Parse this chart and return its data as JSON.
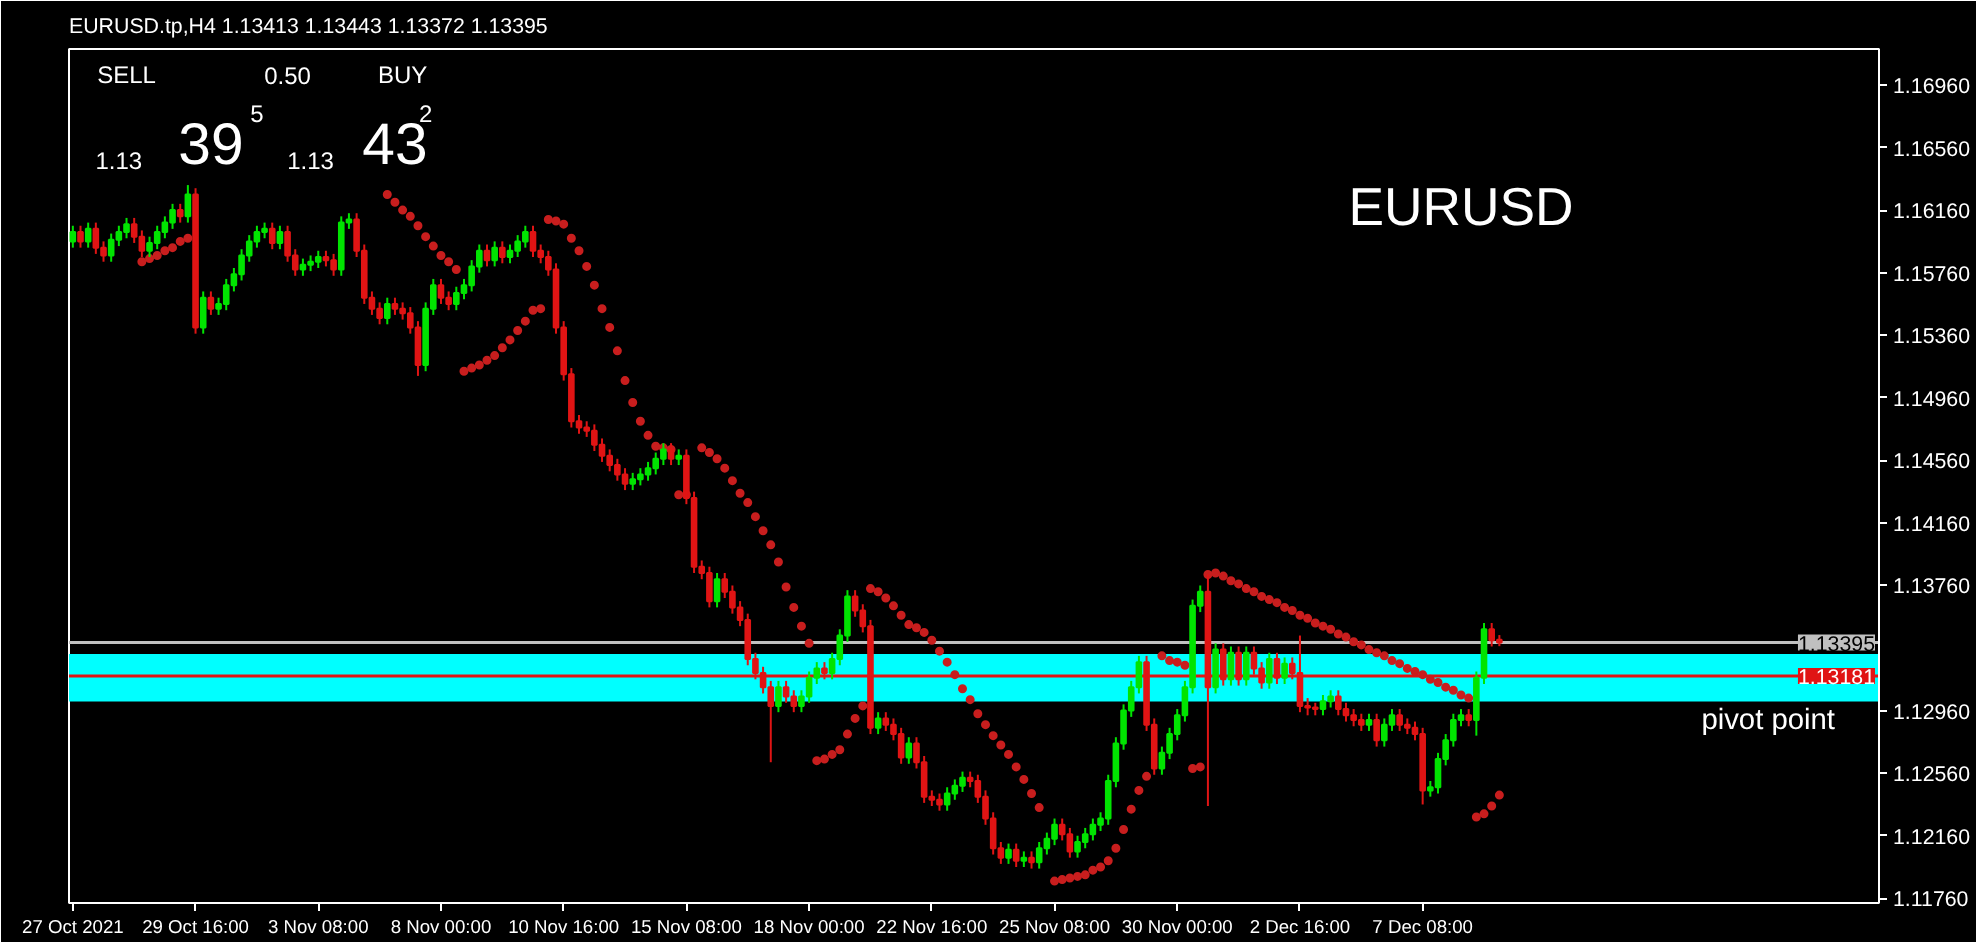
{
  "chart_data": {
    "type": "candlestick",
    "title": "EURUSD.tp,H4  1.13413 1.13443 1.13372 1.13395",
    "categories": [
      "27 Oct 2021",
      null,
      null,
      null,
      null,
      null,
      null,
      null,
      null,
      null,
      null,
      null,
      null,
      null,
      null,
      null,
      "29 Oct 16:00",
      null,
      null,
      null,
      null,
      null,
      null,
      null,
      null,
      null,
      null,
      null,
      null,
      null,
      null,
      null,
      "3 Nov 08:00",
      null,
      null,
      null,
      null,
      null,
      null,
      null,
      null,
      null,
      null,
      null,
      null,
      null,
      null,
      null,
      "8 Nov 00:00",
      null,
      null,
      null,
      null,
      null,
      null,
      null,
      null,
      null,
      null,
      null,
      null,
      null,
      null,
      null,
      "10 Nov 16:00",
      null,
      null,
      null,
      null,
      null,
      null,
      null,
      null,
      null,
      null,
      null,
      null,
      null,
      null,
      null,
      "15 Nov 08:00",
      null,
      null,
      null,
      null,
      null,
      null,
      null,
      null,
      null,
      null,
      null,
      null,
      null,
      null,
      null,
      "18 Nov 00:00",
      null,
      null,
      null,
      null,
      null,
      null,
      null,
      null,
      null,
      null,
      null,
      null,
      null,
      null,
      null,
      "22 Nov 16:00",
      null,
      null,
      null,
      null,
      null,
      null,
      null,
      null,
      null,
      null,
      null,
      null,
      null,
      null,
      null,
      "25 Nov 08:00",
      null,
      null,
      null,
      null,
      null,
      null,
      null,
      null,
      null,
      null,
      null,
      null,
      null,
      null,
      null,
      "30 Nov 00:00",
      null,
      null,
      null,
      null,
      null,
      null,
      null,
      null,
      null,
      null,
      null,
      null,
      null,
      null,
      null,
      "2 Dec 16:00",
      null,
      null,
      null,
      null,
      null,
      null,
      null,
      null,
      null,
      null,
      null,
      null,
      null,
      null,
      null,
      "7 Dec 08:00",
      null,
      null,
      null,
      null,
      null,
      null,
      null,
      null,
      null,
      null,
      null,
      null,
      null,
      null,
      null,
      null,
      null,
      null,
      null,
      null,
      null,
      null,
      null,
      null,
      null,
      null,
      null,
      null,
      null,
      null,
      null,
      null,
      null,
      null,
      null,
      null,
      null,
      null,
      null,
      null,
      null,
      null,
      null,
      null,
      null,
      null,
      null,
      null,
      null,
      null,
      null,
      null,
      null,
      null,
      null,
      null,
      null,
      null,
      null
    ],
    "ohlc": [
      [
        1.1596,
        1.1606,
        1.1592,
        1.1602
      ],
      [
        1.1602,
        1.1606,
        1.1592,
        1.1596
      ],
      [
        1.1596,
        1.1608,
        1.1592,
        1.1604
      ],
      [
        1.1604,
        1.1608,
        1.1588,
        1.1592
      ],
      [
        1.1592,
        1.1596,
        1.1583,
        1.1587
      ],
      [
        1.1587,
        1.1601,
        1.1583,
        1.1597
      ],
      [
        1.1597,
        1.1606,
        1.1593,
        1.1602
      ],
      [
        1.1602,
        1.1611,
        1.1598,
        1.1607
      ],
      [
        1.1607,
        1.1611,
        1.1595,
        1.1599
      ],
      [
        1.1599,
        1.1603,
        1.1586,
        1.159
      ],
      [
        1.159,
        1.1599,
        1.1586,
        1.1595
      ],
      [
        1.1595,
        1.1606,
        1.1591,
        1.1602
      ],
      [
        1.1602,
        1.1612,
        1.1598,
        1.1608
      ],
      [
        1.1608,
        1.162,
        1.1604,
        1.1616
      ],
      [
        1.1616,
        1.162,
        1.1608,
        1.1612
      ],
      [
        1.1612,
        1.1632,
        1.1608,
        1.1626
      ],
      [
        1.1626,
        1.163,
        1.1537,
        1.1541
      ],
      [
        1.1541,
        1.1564,
        1.1537,
        1.156
      ],
      [
        1.156,
        1.1564,
        1.1549,
        1.1553
      ],
      [
        1.1553,
        1.156,
        1.1549,
        1.1556
      ],
      [
        1.1556,
        1.1572,
        1.1552,
        1.1568
      ],
      [
        1.1568,
        1.1579,
        1.1564,
        1.1575
      ],
      [
        1.1575,
        1.1591,
        1.1571,
        1.1587
      ],
      [
        1.1587,
        1.16,
        1.1583,
        1.1596
      ],
      [
        1.1596,
        1.1606,
        1.1592,
        1.1602
      ],
      [
        1.1602,
        1.1608,
        1.1598,
        1.1604
      ],
      [
        1.1604,
        1.1608,
        1.1591,
        1.1595
      ],
      [
        1.1595,
        1.1606,
        1.1591,
        1.1602
      ],
      [
        1.1602,
        1.1606,
        1.1583,
        1.1587
      ],
      [
        1.1587,
        1.1591,
        1.1574,
        1.1578
      ],
      [
        1.1578,
        1.1585,
        1.1574,
        1.1581
      ],
      [
        1.1581,
        1.1587,
        1.1577,
        1.1583
      ],
      [
        1.1583,
        1.159,
        1.1579,
        1.1586
      ],
      [
        1.1586,
        1.159,
        1.158,
        1.1584
      ],
      [
        1.1584,
        1.1588,
        1.1574,
        1.1578
      ],
      [
        1.1578,
        1.1612,
        1.1574,
        1.1608
      ],
      [
        1.1608,
        1.1614,
        1.1604,
        1.161
      ],
      [
        1.161,
        1.1614,
        1.1586,
        1.159
      ],
      [
        1.159,
        1.1594,
        1.1556,
        1.156
      ],
      [
        1.156,
        1.1564,
        1.1549,
        1.1553
      ],
      [
        1.1553,
        1.1557,
        1.1543,
        1.1547
      ],
      [
        1.1547,
        1.156,
        1.1543,
        1.1556
      ],
      [
        1.1556,
        1.156,
        1.1549,
        1.1553
      ],
      [
        1.1553,
        1.1557,
        1.1546,
        1.155
      ],
      [
        1.155,
        1.1554,
        1.1537,
        1.1541
      ],
      [
        1.1541,
        1.1545,
        1.151,
        1.1517
      ],
      [
        1.1517,
        1.1557,
        1.1513,
        1.1553
      ],
      [
        1.1553,
        1.1572,
        1.1549,
        1.1568
      ],
      [
        1.1568,
        1.1572,
        1.1556,
        1.156
      ],
      [
        1.156,
        1.1564,
        1.1552,
        1.1556
      ],
      [
        1.1556,
        1.1567,
        1.1552,
        1.1563
      ],
      [
        1.1563,
        1.1572,
        1.1559,
        1.1568
      ],
      [
        1.1568,
        1.1584,
        1.1564,
        1.158
      ],
      [
        1.158,
        1.1594,
        1.1576,
        1.159
      ],
      [
        1.159,
        1.1594,
        1.158,
        1.1584
      ],
      [
        1.1584,
        1.1596,
        1.158,
        1.1592
      ],
      [
        1.1592,
        1.1596,
        1.1582,
        1.1586
      ],
      [
        1.1586,
        1.1594,
        1.1582,
        1.159
      ],
      [
        1.159,
        1.16,
        1.1586,
        1.1596
      ],
      [
        1.1596,
        1.1606,
        1.1592,
        1.1602
      ],
      [
        1.1602,
        1.1606,
        1.1586,
        1.159
      ],
      [
        1.159,
        1.1594,
        1.1582,
        1.1586
      ],
      [
        1.1586,
        1.159,
        1.1574,
        1.1578
      ],
      [
        1.1578,
        1.1582,
        1.1537,
        1.1541
      ],
      [
        1.1541,
        1.1545,
        1.1507,
        1.1511
      ],
      [
        1.1511,
        1.1515,
        1.1477,
        1.1481
      ],
      [
        1.1481,
        1.1485,
        1.1473,
        1.1477
      ],
      [
        1.1477,
        1.1481,
        1.1471,
        1.1475
      ],
      [
        1.1475,
        1.1479,
        1.1462,
        1.1466
      ],
      [
        1.1466,
        1.147,
        1.1455,
        1.1459
      ],
      [
        1.1459,
        1.1463,
        1.1449,
        1.1453
      ],
      [
        1.1453,
        1.1457,
        1.1443,
        1.1447
      ],
      [
        1.1447,
        1.1451,
        1.1437,
        1.1441
      ],
      [
        1.1441,
        1.1448,
        1.1437,
        1.1444
      ],
      [
        1.1444,
        1.1451,
        1.144,
        1.1447
      ],
      [
        1.1447,
        1.1455,
        1.1443,
        1.1451
      ],
      [
        1.1451,
        1.1461,
        1.1447,
        1.1457
      ],
      [
        1.1457,
        1.1467,
        1.1453,
        1.1463
      ],
      [
        1.1463,
        1.1467,
        1.1453,
        1.1457
      ],
      [
        1.1457,
        1.1463,
        1.1453,
        1.1459
      ],
      [
        1.1459,
        1.1463,
        1.1428,
        1.1432
      ],
      [
        1.1432,
        1.1436,
        1.1384,
        1.1388
      ],
      [
        1.1388,
        1.1392,
        1.138,
        1.1384
      ],
      [
        1.1384,
        1.1388,
        1.1362,
        1.1366
      ],
      [
        1.1366,
        1.1384,
        1.1362,
        1.138
      ],
      [
        1.138,
        1.1384,
        1.1368,
        1.1372
      ],
      [
        1.1372,
        1.1376,
        1.1358,
        1.1362
      ],
      [
        1.1362,
        1.1366,
        1.135,
        1.1354
      ],
      [
        1.1354,
        1.1358,
        1.1325,
        1.1329
      ],
      [
        1.1329,
        1.1333,
        1.1316,
        1.132
      ],
      [
        1.132,
        1.1324,
        1.1307,
        1.1311
      ],
      [
        1.1311,
        1.1315,
        1.1263,
        1.1299
      ],
      [
        1.1299,
        1.1315,
        1.1295,
        1.1311
      ],
      [
        1.1311,
        1.1315,
        1.1301,
        1.1305
      ],
      [
        1.1305,
        1.1309,
        1.1295,
        1.1299
      ],
      [
        1.1299,
        1.1309,
        1.1295,
        1.1305
      ],
      [
        1.1305,
        1.1321,
        1.1301,
        1.1317
      ],
      [
        1.1317,
        1.1327,
        1.1313,
        1.1323
      ],
      [
        1.1323,
        1.1327,
        1.1316,
        1.132
      ],
      [
        1.132,
        1.1333,
        1.1316,
        1.1329
      ],
      [
        1.1329,
        1.1348,
        1.1325,
        1.1344
      ],
      [
        1.1344,
        1.1373,
        1.134,
        1.1369
      ],
      [
        1.1369,
        1.1373,
        1.1356,
        1.136
      ],
      [
        1.136,
        1.1364,
        1.1346,
        1.135
      ],
      [
        1.135,
        1.1354,
        1.1281,
        1.1285
      ],
      [
        1.1285,
        1.1295,
        1.1281,
        1.1291
      ],
      [
        1.1291,
        1.1295,
        1.1283,
        1.1287
      ],
      [
        1.1287,
        1.1291,
        1.1277,
        1.1281
      ],
      [
        1.1281,
        1.1285,
        1.1262,
        1.1266
      ],
      [
        1.1266,
        1.1279,
        1.1262,
        1.1275
      ],
      [
        1.1275,
        1.1279,
        1.1259,
        1.1263
      ],
      [
        1.1263,
        1.1267,
        1.1237,
        1.1241
      ],
      [
        1.1241,
        1.1245,
        1.1235,
        1.1239
      ],
      [
        1.1239,
        1.1243,
        1.1232,
        1.1236
      ],
      [
        1.1236,
        1.1247,
        1.1232,
        1.1243
      ],
      [
        1.1243,
        1.1252,
        1.1239,
        1.1248
      ],
      [
        1.1248,
        1.1257,
        1.1244,
        1.1253
      ],
      [
        1.1253,
        1.1257,
        1.1247,
        1.1251
      ],
      [
        1.1251,
        1.1255,
        1.1237,
        1.1241
      ],
      [
        1.1241,
        1.1245,
        1.1223,
        1.1227
      ],
      [
        1.1227,
        1.1231,
        1.1204,
        1.1208
      ],
      [
        1.1208,
        1.1212,
        1.1198,
        1.1202
      ],
      [
        1.1202,
        1.1211,
        1.1198,
        1.1207
      ],
      [
        1.1207,
        1.1211,
        1.1196,
        1.12
      ],
      [
        1.12,
        1.1206,
        1.1196,
        1.1202
      ],
      [
        1.1202,
        1.1206,
        1.1195,
        1.1199
      ],
      [
        1.1199,
        1.1212,
        1.1195,
        1.1208
      ],
      [
        1.1208,
        1.1218,
        1.1204,
        1.1214
      ],
      [
        1.1214,
        1.1227,
        1.121,
        1.1223
      ],
      [
        1.1223,
        1.1227,
        1.1213,
        1.1217
      ],
      [
        1.1217,
        1.1221,
        1.1202,
        1.1206
      ],
      [
        1.1206,
        1.1216,
        1.1202,
        1.1212
      ],
      [
        1.1212,
        1.1221,
        1.1208,
        1.1217
      ],
      [
        1.1217,
        1.1227,
        1.1213,
        1.1223
      ],
      [
        1.1223,
        1.1231,
        1.1219,
        1.1227
      ],
      [
        1.1227,
        1.1255,
        1.1223,
        1.1251
      ],
      [
        1.1251,
        1.1279,
        1.1247,
        1.1275
      ],
      [
        1.1275,
        1.13,
        1.1271,
        1.1296
      ],
      [
        1.1296,
        1.1315,
        1.1292,
        1.1311
      ],
      [
        1.1311,
        1.1331,
        1.1307,
        1.1327
      ],
      [
        1.1327,
        1.1331,
        1.1283,
        1.1287
      ],
      [
        1.1287,
        1.1291,
        1.1255,
        1.1259
      ],
      [
        1.1259,
        1.1273,
        1.1255,
        1.1269
      ],
      [
        1.1269,
        1.1285,
        1.1265,
        1.1281
      ],
      [
        1.1281,
        1.1297,
        1.1277,
        1.1293
      ],
      [
        1.1293,
        1.1315,
        1.1289,
        1.1311
      ],
      [
        1.1311,
        1.1367,
        1.1307,
        1.1363
      ],
      [
        1.1363,
        1.1376,
        1.1359,
        1.1372
      ],
      [
        1.1372,
        1.1383,
        1.1235,
        1.1311
      ],
      [
        1.1311,
        1.1339,
        1.1307,
        1.1335
      ],
      [
        1.1335,
        1.1339,
        1.1312,
        1.1316
      ],
      [
        1.1316,
        1.1337,
        1.1312,
        1.1333
      ],
      [
        1.1333,
        1.1337,
        1.1312,
        1.1316
      ],
      [
        1.1316,
        1.1337,
        1.1312,
        1.1333
      ],
      [
        1.1333,
        1.1337,
        1.1319,
        1.1323
      ],
      [
        1.1323,
        1.1327,
        1.131,
        1.1314
      ],
      [
        1.1314,
        1.1333,
        1.131,
        1.1329
      ],
      [
        1.1329,
        1.1333,
        1.1313,
        1.1317
      ],
      [
        1.1317,
        1.133,
        1.1313,
        1.1326
      ],
      [
        1.1326,
        1.133,
        1.1316,
        1.132
      ],
      [
        1.132,
        1.1344,
        1.1295,
        1.1299
      ],
      [
        1.1299,
        1.1304,
        1.1293,
        1.1298
      ],
      [
        1.1298,
        1.1301,
        1.1293,
        1.1297
      ],
      [
        1.1297,
        1.1306,
        1.1293,
        1.1302
      ],
      [
        1.1302,
        1.1309,
        1.1298,
        1.1305
      ],
      [
        1.1305,
        1.1309,
        1.1293,
        1.1297
      ],
      [
        1.1297,
        1.1301,
        1.1289,
        1.1293
      ],
      [
        1.1293,
        1.1297,
        1.1286,
        1.129
      ],
      [
        1.129,
        1.1294,
        1.1283,
        1.1287
      ],
      [
        1.1287,
        1.1294,
        1.1283,
        1.129
      ],
      [
        1.129,
        1.1294,
        1.1273,
        1.1277
      ],
      [
        1.1277,
        1.1291,
        1.1273,
        1.1287
      ],
      [
        1.1287,
        1.1297,
        1.1283,
        1.1293
      ],
      [
        1.1293,
        1.1297,
        1.1283,
        1.1287
      ],
      [
        1.1287,
        1.1291,
        1.1281,
        1.1285
      ],
      [
        1.1285,
        1.1289,
        1.1277,
        1.1281
      ],
      [
        1.1281,
        1.1285,
        1.1236,
        1.1245
      ],
      [
        1.1245,
        1.1251,
        1.1241,
        1.1247
      ],
      [
        1.1247,
        1.1269,
        1.1243,
        1.1265
      ],
      [
        1.1265,
        1.1281,
        1.1261,
        1.1277
      ],
      [
        1.1277,
        1.1294,
        1.1273,
        1.129
      ],
      [
        1.129,
        1.1297,
        1.1286,
        1.1293
      ],
      [
        1.1293,
        1.1297,
        1.1286,
        1.129
      ],
      [
        1.129,
        1.1321,
        1.128,
        1.1317
      ],
      [
        1.1317,
        1.1352,
        1.1313,
        1.1348
      ],
      [
        1.1348,
        1.1352,
        1.1337,
        1.1341
      ],
      [
        1.13413,
        1.13443,
        1.13372,
        1.13395
      ],
      null,
      null,
      null,
      null,
      null,
      null,
      null,
      null,
      null,
      null,
      null,
      null,
      null,
      null,
      null,
      null,
      null,
      null,
      null,
      null,
      null,
      null,
      null,
      null,
      null,
      null,
      null,
      null,
      null,
      null,
      null,
      null,
      null,
      null,
      null,
      null,
      null,
      null,
      null,
      null,
      null,
      null,
      null,
      null,
      null,
      null,
      null,
      null,
      null
    ],
    "colors": [
      "#00e400",
      "#e01414",
      "#00e400",
      "#e01414",
      "#e01414",
      "#00e400",
      "#00e400",
      "#00e400",
      "#e01414",
      "#e01414",
      "#00e400",
      "#00e400",
      "#00e400",
      "#00e400",
      "#e01414",
      "#00e400",
      "#e01414",
      "#00e400",
      "#e01414",
      "#00e400",
      "#00e400",
      "#00e400",
      "#00e400",
      "#00e400",
      "#00e400",
      "#00e400",
      "#e01414",
      "#00e400",
      "#e01414",
      "#e01414",
      "#00e400",
      "#00e400",
      "#00e400",
      "#e01414",
      "#e01414",
      "#00e400",
      "#00e400",
      "#e01414",
      "#e01414",
      "#e01414",
      "#e01414",
      "#00e400",
      "#e01414",
      "#e01414",
      "#e01414",
      "#e01414",
      "#00e400",
      "#00e400",
      "#e01414",
      "#e01414",
      "#00e400",
      "#00e400",
      "#00e400",
      "#00e400",
      "#e01414",
      "#00e400",
      "#e01414",
      "#00e400",
      "#00e400",
      "#00e400",
      "#e01414",
      "#e01414",
      "#e01414",
      "#e01414",
      "#e01414",
      "#e01414",
      "#e01414",
      "#e01414",
      "#e01414",
      "#e01414",
      "#e01414",
      "#e01414",
      "#e01414",
      "#00e400",
      "#00e400",
      "#00e400",
      "#00e400",
      "#00e400",
      "#e01414",
      "#00e400",
      "#e01414",
      "#e01414",
      "#e01414",
      "#e01414",
      "#00e400",
      "#e01414",
      "#e01414",
      "#e01414",
      "#e01414",
      "#e01414",
      "#e01414",
      "#e01414",
      "#00e400",
      "#e01414",
      "#e01414",
      "#00e400",
      "#00e400",
      "#00e400",
      "#e01414",
      "#00e400",
      "#00e400",
      "#00e400",
      "#e01414",
      "#e01414",
      "#e01414",
      "#00e400",
      "#e01414",
      "#e01414",
      "#e01414",
      "#00e400",
      "#e01414",
      "#e01414",
      "#e01414",
      "#e01414",
      "#00e400",
      "#00e400",
      "#00e400",
      "#e01414",
      "#e01414",
      "#e01414",
      "#e01414",
      "#e01414",
      "#00e400",
      "#e01414",
      "#00e400",
      "#e01414",
      "#00e400",
      "#00e400",
      "#00e400",
      "#e01414",
      "#e01414",
      "#00e400",
      "#00e400",
      "#00e400",
      "#00e400",
      "#00e400",
      "#00e400",
      "#00e400",
      "#00e400",
      "#00e400",
      "#e01414",
      "#e01414",
      "#00e400",
      "#00e400",
      "#00e400",
      "#00e400",
      "#00e400",
      "#00e400",
      "#e01414",
      "#00e400",
      "#e01414",
      "#00e400",
      "#e01414",
      "#00e400",
      "#e01414",
      "#e01414",
      "#00e400",
      "#e01414",
      "#00e400",
      "#e01414",
      "#e01414",
      "#e01414",
      "#e01414",
      "#00e400",
      "#00e400",
      "#e01414",
      "#e01414",
      "#e01414",
      "#e01414",
      "#00e400",
      "#e01414",
      "#00e400",
      "#00e400",
      "#e01414",
      "#e01414",
      "#e01414",
      "#e01414",
      "#00e400",
      "#00e400",
      "#00e400",
      "#00e400",
      "#00e400",
      "#e01414",
      "#00e400",
      "#00e400",
      "#e01414",
      "#e01414",
      null,
      null,
      null,
      null,
      null,
      null,
      null,
      null,
      null,
      null,
      null,
      null,
      null,
      null,
      null,
      null,
      null,
      null,
      null,
      null,
      null,
      null,
      null,
      null,
      null,
      null,
      null,
      null,
      null,
      null,
      null,
      null,
      null,
      null,
      null,
      null,
      null,
      null,
      null,
      null,
      null,
      null,
      null,
      null,
      null,
      null,
      null,
      null,
      null
    ],
    "series": [
      {
        "type": "scatter",
        "color": "#c81e1e",
        "values": [
          null,
          null,
          null,
          null,
          null,
          null,
          null,
          null,
          null,
          1.1583,
          1.1585,
          1.1587,
          1.159,
          1.1592,
          1.1596,
          1.1598,
          null,
          null,
          null,
          null,
          null,
          null,
          null,
          null,
          null,
          null,
          null,
          null,
          null,
          null,
          null,
          null,
          null,
          null,
          null,
          null,
          null,
          null,
          null,
          null,
          null,
          1.1626,
          1.1621,
          1.1616,
          1.1612,
          1.1606,
          1.1599,
          1.1593,
          1.1587,
          1.1583,
          1.1578,
          1.1513,
          1.1515,
          1.1517,
          1.152,
          1.1523,
          1.1528,
          1.1533,
          1.1539,
          1.1545,
          1.1552,
          1.1553,
          1.161,
          1.1609,
          1.1607,
          1.1598,
          1.159,
          1.158,
          1.1568,
          1.1553,
          1.1541,
          1.1526,
          1.1507,
          1.1493,
          1.1481,
          1.1472,
          1.1465,
          1.1464,
          1.1463,
          1.1434,
          1.1434,
          null,
          1.1464,
          1.1461,
          1.1457,
          1.1451,
          1.1443,
          1.1435,
          1.1429,
          1.142,
          1.1411,
          1.1402,
          1.1391,
          1.1375,
          1.1362,
          1.135,
          1.1339,
          1.1264,
          1.1265,
          1.1268,
          1.1271,
          1.1281,
          1.1291,
          1.1299,
          1.1374,
          1.1372,
          1.1368,
          1.1363,
          1.1357,
          1.1351,
          1.1349,
          1.1346,
          1.1341,
          1.1334,
          1.1327,
          1.1319,
          1.131,
          1.1303,
          1.1294,
          1.1287,
          1.128,
          1.1274,
          1.1268,
          1.126,
          1.1252,
          1.1243,
          1.1234,
          null,
          1.1187,
          1.1188,
          1.1189,
          1.119,
          1.1191,
          1.1194,
          1.1196,
          1.12,
          1.1208,
          1.122,
          1.1233,
          1.1245,
          1.1254,
          null,
          1.1331,
          1.1328,
          1.1327,
          1.1325,
          1.1259,
          1.126,
          1.1383,
          1.1384,
          1.1382,
          1.1379,
          1.1377,
          1.1374,
          1.1372,
          1.1369,
          1.1367,
          1.1365,
          1.1362,
          1.136,
          1.1357,
          1.1355,
          1.1352,
          1.135,
          1.1348,
          1.1345,
          1.1343,
          1.134,
          1.1338,
          1.1335,
          1.1333,
          1.1331,
          1.1328,
          1.1326,
          1.1323,
          1.1321,
          1.1319,
          1.1316,
          1.1314,
          1.1311,
          1.1309,
          1.1306,
          1.1304,
          1.1228,
          1.123,
          1.1235,
          1.1242,
          null,
          null,
          null,
          null,
          null,
          null,
          null,
          null,
          null,
          null,
          null,
          null,
          null,
          null,
          null,
          null,
          null,
          null,
          null,
          null,
          null,
          null,
          null,
          null,
          null,
          null,
          null,
          null,
          null,
          null,
          null,
          null,
          null,
          null,
          null,
          null,
          null,
          null,
          null,
          null,
          null,
          null,
          null,
          null,
          null,
          null,
          null,
          null,
          null
        ]
      }
    ],
    "marker": "circle",
    "ylim": [
      1.1173,
      1.1719
    ],
    "yticks": [
      {
        "value": 1.1696,
        "label": "1.16960"
      },
      {
        "value": 1.1656,
        "label": "1.16560"
      },
      {
        "value": 1.1616,
        "label": "1.16160"
      },
      {
        "value": 1.1576,
        "label": "1.15760"
      },
      {
        "value": 1.1536,
        "label": "1.15360"
      },
      {
        "value": 1.1496,
        "label": "1.14960"
      },
      {
        "value": 1.1456,
        "label": "1.14560"
      },
      {
        "value": 1.1416,
        "label": "1.14160"
      },
      {
        "value": 1.1376,
        "label": "1.13760"
      },
      {
        "value": 1.1296,
        "label": "1.12960"
      },
      {
        "value": 1.1256,
        "label": "1.12560"
      },
      {
        "value": 1.1216,
        "label": "1.12160"
      },
      {
        "value": 1.1176,
        "label": "1.11760"
      }
    ],
    "bands": [
      {
        "axis": "y",
        "from": 1.13019,
        "to": 1.13322,
        "label": "pivot point",
        "color": "#00ffff"
      }
    ],
    "ref_lines": [
      {
        "axis": "y",
        "value": 1.13395,
        "label": "1.13395",
        "color": "#c0c0c0"
      },
      {
        "axis": "y",
        "value": 1.13181,
        "label": "1.13181",
        "color": "#e01414"
      }
    ],
    "annotations": [
      "EURUSD",
      "SELL",
      "0.50",
      "BUY",
      "1.13",
      "39",
      "5",
      "1.13",
      "43",
      "2"
    ],
    "grid": false
  }
}
